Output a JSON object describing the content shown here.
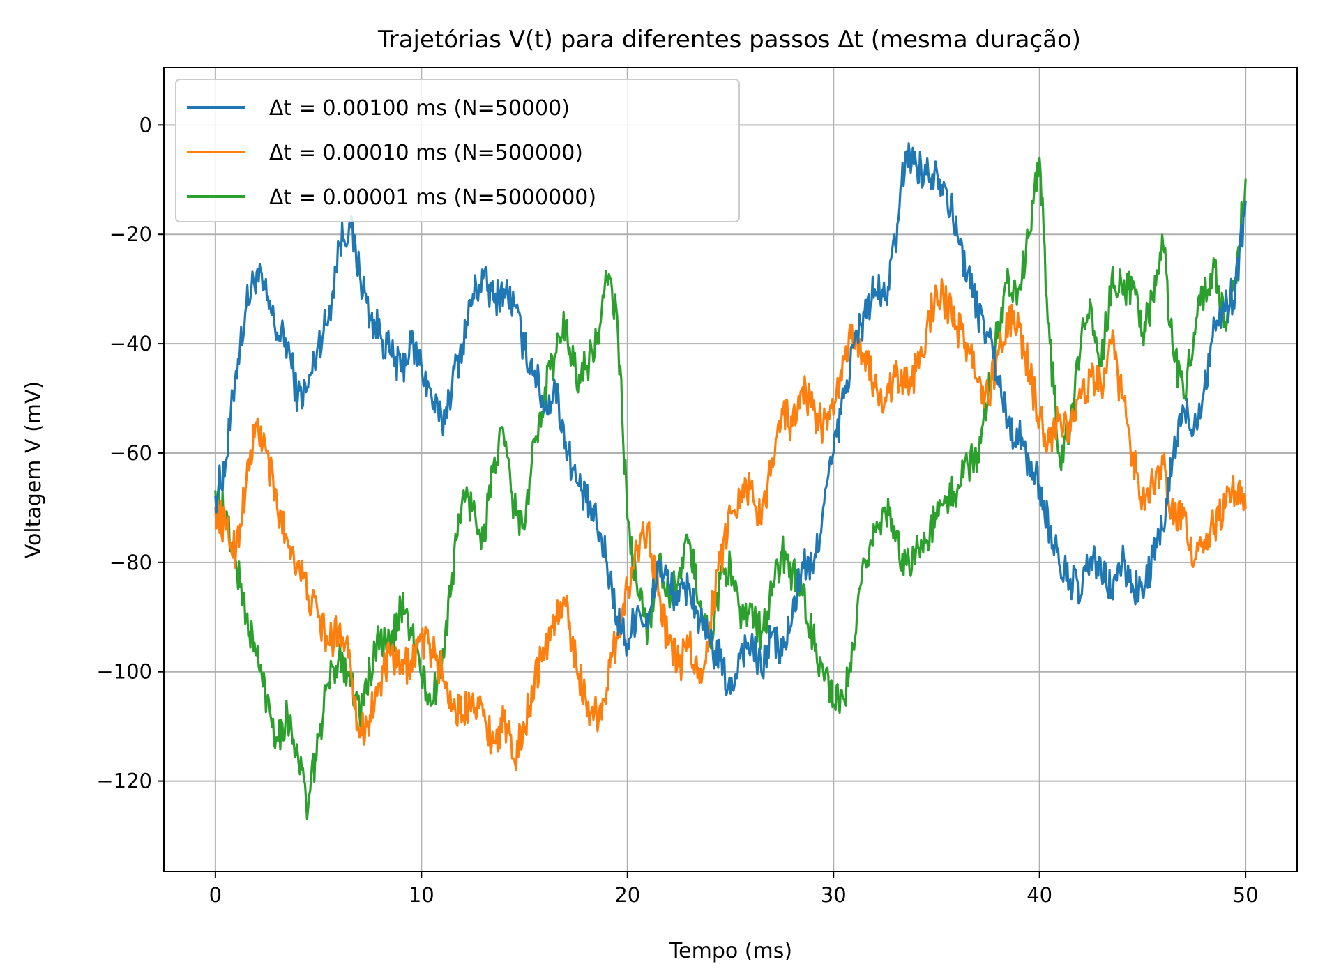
{
  "chart_data": {
    "type": "line",
    "title": "Trajetórias V(t) para diferentes passos Δt (mesma duração)",
    "xlabel": "Tempo (ms)",
    "ylabel": "Voltagem V (mV)",
    "xlim": [
      -2.5,
      52.5
    ],
    "ylim": [
      -136.5,
      10.5
    ],
    "xticks": [
      0,
      10,
      20,
      30,
      40,
      50
    ],
    "yticks": [
      0,
      -20,
      -40,
      -60,
      -80,
      -100,
      -120
    ],
    "xtick_labels": [
      "0",
      "10",
      "20",
      "30",
      "40",
      "50"
    ],
    "ytick_labels": [
      "0",
      "−20",
      "−40",
      "−60",
      "−80",
      "−100",
      "−120"
    ],
    "grid": true,
    "legend_position": "upper-left",
    "series": [
      {
        "name": "Δt = 0.00100 ms (N=50000)",
        "color": "#1f77b4",
        "x": [
          0,
          0.5,
          1,
          1.5,
          2,
          2.5,
          3,
          3.5,
          4,
          4.5,
          5,
          5.5,
          6,
          6.5,
          7,
          7.5,
          8,
          8.5,
          9,
          9.5,
          10,
          10.5,
          11,
          11.5,
          12,
          12.5,
          13,
          13.5,
          14,
          14.5,
          15,
          15.5,
          16,
          16.5,
          17,
          17.5,
          18,
          18.5,
          19,
          19.5,
          20,
          20.5,
          21,
          21.5,
          22,
          22.5,
          23,
          23.5,
          24,
          24.5,
          25,
          25.5,
          26,
          26.5,
          27,
          27.5,
          28,
          28.5,
          29,
          29.5,
          30,
          30.5,
          31,
          31.5,
          32,
          32.5,
          33,
          33.5,
          34,
          34.5,
          35,
          35.5,
          36,
          36.5,
          37,
          37.5,
          38,
          38.5,
          39,
          39.5,
          40,
          40.5,
          41,
          41.5,
          42,
          42.5,
          43,
          43.5,
          44,
          44.5,
          45,
          45.5,
          46,
          46.5,
          47,
          47.5,
          48,
          48.5,
          49,
          49.5,
          50
        ],
        "values": [
          -68,
          -62,
          -45,
          -33,
          -27,
          -32,
          -38,
          -40,
          -50,
          -48,
          -40,
          -35,
          -22,
          -18,
          -27,
          -35,
          -38,
          -42,
          -45,
          -40,
          -44,
          -50,
          -55,
          -47,
          -40,
          -31,
          -28,
          -32,
          -30,
          -33,
          -41,
          -45,
          -52,
          -48,
          -58,
          -65,
          -69,
          -73,
          -80,
          -90,
          -95,
          -88,
          -92,
          -80,
          -84,
          -87,
          -84,
          -91,
          -95,
          -98,
          -104,
          -96,
          -95,
          -100,
          -93,
          -97,
          -90,
          -80,
          -82,
          -70,
          -60,
          -50,
          -40,
          -35,
          -30,
          -32,
          -22,
          -5,
          -7,
          -9,
          -8,
          -12,
          -20,
          -27,
          -34,
          -38,
          -46,
          -55,
          -57,
          -62,
          -66,
          -74,
          -81,
          -83,
          -86,
          -79,
          -82,
          -85,
          -80,
          -84,
          -86,
          -79,
          -74,
          -60,
          -52,
          -55,
          -48,
          -36,
          -34,
          -30,
          -14
        ]
      },
      {
        "name": "Δt = 0.00010 ms (N=500000)",
        "color": "#ff7f0e",
        "x": [
          0,
          0.5,
          1,
          1.5,
          2,
          2.5,
          3,
          3.5,
          4,
          4.5,
          5,
          5.5,
          6,
          6.5,
          7,
          7.5,
          8,
          8.5,
          9,
          9.5,
          10,
          10.5,
          11,
          11.5,
          12,
          12.5,
          13,
          13.5,
          14,
          14.5,
          15,
          15.5,
          16,
          16.5,
          17,
          17.5,
          18,
          18.5,
          19,
          19.5,
          20,
          20.5,
          21,
          21.5,
          22,
          22.5,
          23,
          23.5,
          24,
          24.5,
          25,
          25.5,
          26,
          26.5,
          27,
          27.5,
          28,
          28.5,
          29,
          29.5,
          30,
          30.5,
          31,
          31.5,
          32,
          32.5,
          33,
          33.5,
          34,
          34.5,
          35,
          35.5,
          36,
          36.5,
          37,
          37.5,
          38,
          38.5,
          39,
          39.5,
          40,
          40.5,
          41,
          41.5,
          42,
          42.5,
          43,
          43.5,
          44,
          44.5,
          45,
          45.5,
          46,
          46.5,
          47,
          47.5,
          48,
          48.5,
          49,
          49.5,
          50
        ],
        "values": [
          -70,
          -74,
          -78,
          -65,
          -55,
          -60,
          -70,
          -76,
          -80,
          -86,
          -90,
          -95,
          -92,
          -96,
          -112,
          -108,
          -102,
          -97,
          -100,
          -98,
          -94,
          -96,
          -100,
          -106,
          -108,
          -104,
          -108,
          -113,
          -109,
          -116,
          -110,
          -101,
          -96,
          -90,
          -88,
          -98,
          -106,
          -108,
          -103,
          -93,
          -85,
          -77,
          -73,
          -86,
          -95,
          -99,
          -95,
          -102,
          -91,
          -80,
          -71,
          -67,
          -66,
          -73,
          -61,
          -52,
          -55,
          -48,
          -52,
          -55,
          -53,
          -43,
          -38,
          -42,
          -48,
          -50,
          -46,
          -48,
          -45,
          -38,
          -30,
          -33,
          -37,
          -40,
          -47,
          -50,
          -42,
          -36,
          -37,
          -45,
          -54,
          -58,
          -53,
          -56,
          -50,
          -46,
          -48,
          -40,
          -50,
          -60,
          -68,
          -65,
          -62,
          -73,
          -70,
          -80,
          -76,
          -73,
          -70,
          -67,
          -70
        ]
      },
      {
        "name": "Δt = 0.00001 ms (N=5000000)",
        "color": "#2ca02c",
        "x": [
          0,
          0.5,
          1,
          1.5,
          2,
          2.5,
          3,
          3.5,
          4,
          4.5,
          5,
          5.5,
          6,
          6.5,
          7,
          7.5,
          8,
          8.5,
          9,
          9.5,
          10,
          10.5,
          11,
          11.5,
          12,
          12.5,
          13,
          13.5,
          14,
          14.5,
          15,
          15.5,
          16,
          16.5,
          17,
          17.5,
          18,
          18.5,
          19,
          19.5,
          20,
          20.5,
          21,
          21.5,
          22,
          22.5,
          23,
          23.5,
          24,
          24.5,
          25,
          25.5,
          26,
          26.5,
          27,
          27.5,
          28,
          28.5,
          29,
          29.5,
          30,
          30.5,
          31,
          31.5,
          32,
          32.5,
          33,
          33.5,
          34,
          34.5,
          35,
          35.5,
          36,
          36.5,
          37,
          37.5,
          38,
          38.5,
          39,
          39.5,
          40,
          40.5,
          41,
          41.5,
          42,
          42.5,
          43,
          43.5,
          44,
          44.5,
          45,
          45.5,
          46,
          46.5,
          47,
          47.5,
          48,
          48.5,
          49,
          49.5,
          50
        ],
        "values": [
          -67,
          -72,
          -80,
          -90,
          -97,
          -105,
          -112,
          -108,
          -115,
          -125,
          -112,
          -102,
          -97,
          -100,
          -108,
          -100,
          -94,
          -96,
          -88,
          -92,
          -101,
          -106,
          -98,
          -82,
          -68,
          -70,
          -76,
          -62,
          -57,
          -70,
          -74,
          -58,
          -48,
          -42,
          -36,
          -46,
          -44,
          -40,
          -28,
          -35,
          -72,
          -86,
          -92,
          -80,
          -86,
          -82,
          -76,
          -88,
          -95,
          -83,
          -80,
          -92,
          -88,
          -93,
          -86,
          -78,
          -82,
          -86,
          -94,
          -100,
          -106,
          -105,
          -96,
          -80,
          -74,
          -70,
          -76,
          -80,
          -78,
          -76,
          -72,
          -68,
          -67,
          -62,
          -60,
          -50,
          -36,
          -28,
          -30,
          -20,
          -6,
          -40,
          -62,
          -54,
          -40,
          -33,
          -44,
          -28,
          -30,
          -30,
          -38,
          -32,
          -22,
          -42,
          -50,
          -38,
          -30,
          -26,
          -36,
          -28,
          -10
        ]
      }
    ]
  }
}
